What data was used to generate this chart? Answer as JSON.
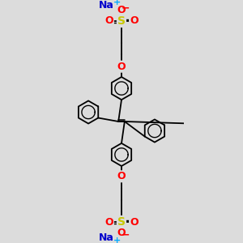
{
  "bg_color": "#dcdcdc",
  "bond_color": "#000000",
  "o_color": "#ff0000",
  "s_color": "#c8c800",
  "na_color": "#0000cc",
  "plus_color": "#00aaff",
  "minus_color": "#ff0000",
  "figsize": [
    3.0,
    3.0
  ],
  "dpi": 100,
  "xlim": [
    0,
    6
  ],
  "ylim": [
    0,
    10
  ]
}
